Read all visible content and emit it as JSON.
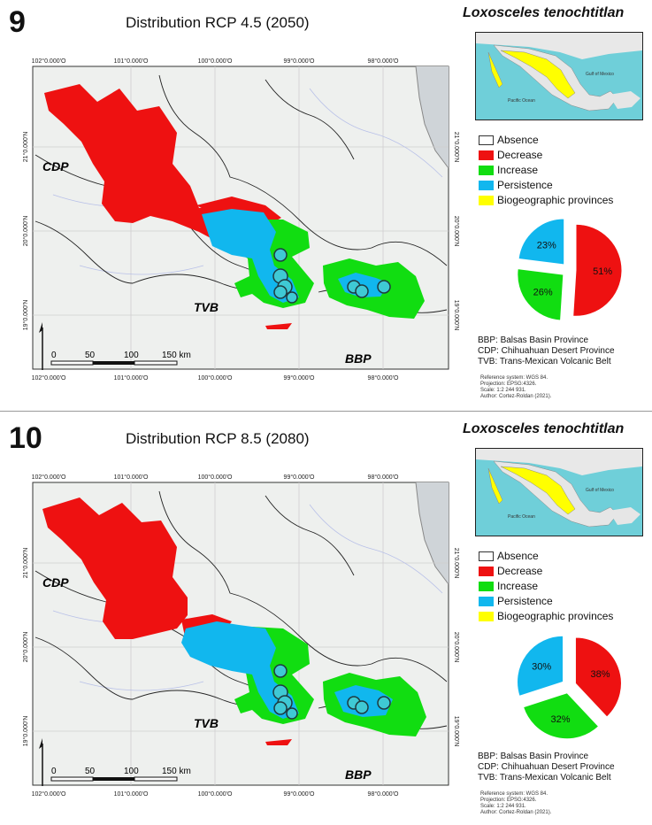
{
  "species": "Loxosceles tenochtitlan",
  "colors": {
    "absence": "#ffffff",
    "decrease": "#ee1111",
    "increase": "#11dd11",
    "persistence": "#11b7ee",
    "provinces": "#ffff00"
  },
  "legend": [
    {
      "key": "absence",
      "label": "Absence"
    },
    {
      "key": "decrease",
      "label": "Decrease"
    },
    {
      "key": "increase",
      "label": "Increase"
    },
    {
      "key": "persistence",
      "label": "Persistence"
    },
    {
      "key": "provinces",
      "label": "Biogeographic provinces"
    }
  ],
  "panels": [
    {
      "number": "9",
      "title": "Distribution RCP 4.5 (2050)",
      "pie": {
        "decrease": "51%",
        "increase": "26%",
        "persistence": "23%"
      },
      "chart_data": {
        "type": "pie",
        "categories": [
          "Decrease",
          "Increase",
          "Persistence"
        ],
        "values": [
          51,
          26,
          23
        ]
      }
    },
    {
      "number": "10",
      "title": "Distribution RCP 8.5 (2080)",
      "pie": {
        "decrease": "38%",
        "increase": "32%",
        "persistence": "30%"
      },
      "chart_data": {
        "type": "pie",
        "categories": [
          "Decrease",
          "Increase",
          "Persistence"
        ],
        "values": [
          38,
          32,
          30
        ]
      }
    }
  ],
  "map": {
    "lon_labels": [
      "102°0.000'O",
      "101°0.000'O",
      "100°0.000'O",
      "99°0.000'O",
      "98°0.000'O"
    ],
    "lat_labels": [
      "21°0.000'N",
      "20°0.000'N",
      "19°0.000'N"
    ],
    "regions": {
      "cdp": "CDP",
      "tvb": "TVB",
      "bbp": "BBP"
    },
    "scale": {
      "t0": "0",
      "t50": "50",
      "t100": "100",
      "t150": "150 km"
    }
  },
  "inset": {
    "pacific": "Pacific Ocean",
    "gulf": "Gulf of Mexico"
  },
  "abbreviations": [
    "BBP: Balsas Basin Province",
    "CDP: Chihuahuan Desert Province",
    "TVB: Trans-Mexican Volcanic Belt"
  ],
  "credits": [
    "Reference system: WGS 84.",
    "Projection: EPSG:4326.",
    "Scale: 1:2 244 931.",
    "Author: Cortez-Roldan (2021)."
  ]
}
